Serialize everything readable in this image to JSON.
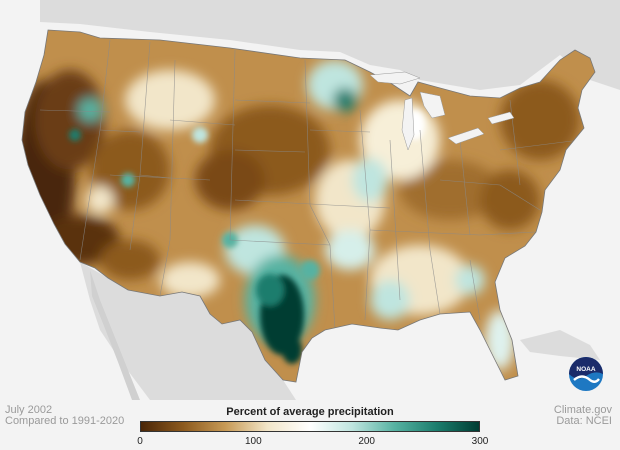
{
  "map": {
    "title": "Percent of average precipitation",
    "period": "July 2002",
    "baseline": "Compared to 1991-2020",
    "source": "Climate.gov",
    "data_source": "Data: NCEI",
    "logo_text": "NOAA",
    "legend": {
      "ticks": [
        {
          "value": 0,
          "label": "0"
        },
        {
          "value": 100,
          "label": "100"
        },
        {
          "value": 200,
          "label": "200"
        },
        {
          "value": 300,
          "label": "300"
        }
      ],
      "range": [
        0,
        300
      ],
      "colors": [
        "#4a2608",
        "#8c5a1e",
        "#c79a56",
        "#f2e6c9",
        "#ffffff",
        "#bfe5df",
        "#57b2a2",
        "#1c7d6d",
        "#003d33"
      ]
    },
    "colors": {
      "ocean": "#f3f3f3",
      "land_outside": "#dcdcdc",
      "state_borders": "#8a8a8a",
      "logo_blue": "#1e78c2",
      "logo_navy": "#1b2b6a"
    }
  }
}
